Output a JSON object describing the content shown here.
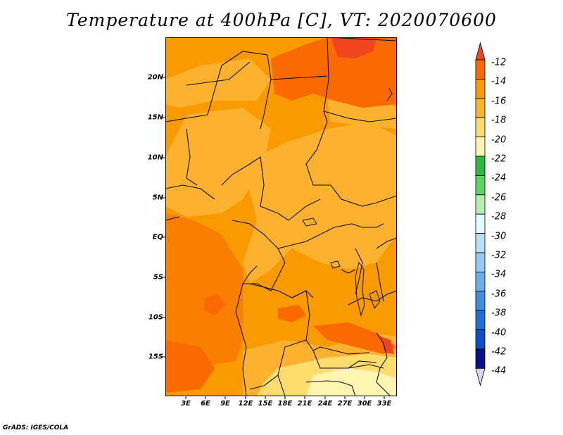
{
  "title": "Temperature at 400hPa [C], VT: 2020070600",
  "credit": "GrADS: IGES/COLA",
  "lat_ticks": [
    "20N",
    "15N",
    "10N",
    "5N",
    "EQ",
    "5S",
    "10S",
    "15S"
  ],
  "lon_ticks": [
    "3E",
    "6E",
    "9E",
    "12E",
    "15E",
    "18E",
    "21E",
    "24E",
    "27E",
    "30E",
    "33E"
  ],
  "colorbar": {
    "labels": [
      "-12",
      "-14",
      "-16",
      "-18",
      "-20",
      "-22",
      "-24",
      "-26",
      "-28",
      "-30",
      "-32",
      "-34",
      "-36",
      "-38",
      "-40",
      "-42",
      "-44"
    ],
    "colors": [
      "#f0451f",
      "#fa6a00",
      "#f89a00",
      "#fcb22f",
      "#fedd6e",
      "#fff5b0",
      "#2db83e",
      "#5ed462",
      "#b3f0b0",
      "#e2fbfb",
      "#b7def8",
      "#93c7f5",
      "#6aaef0",
      "#3d8fe6",
      "#1f6fd8",
      "#0c4fc4",
      "#0a108a",
      "#d8d8f4"
    ]
  }
}
